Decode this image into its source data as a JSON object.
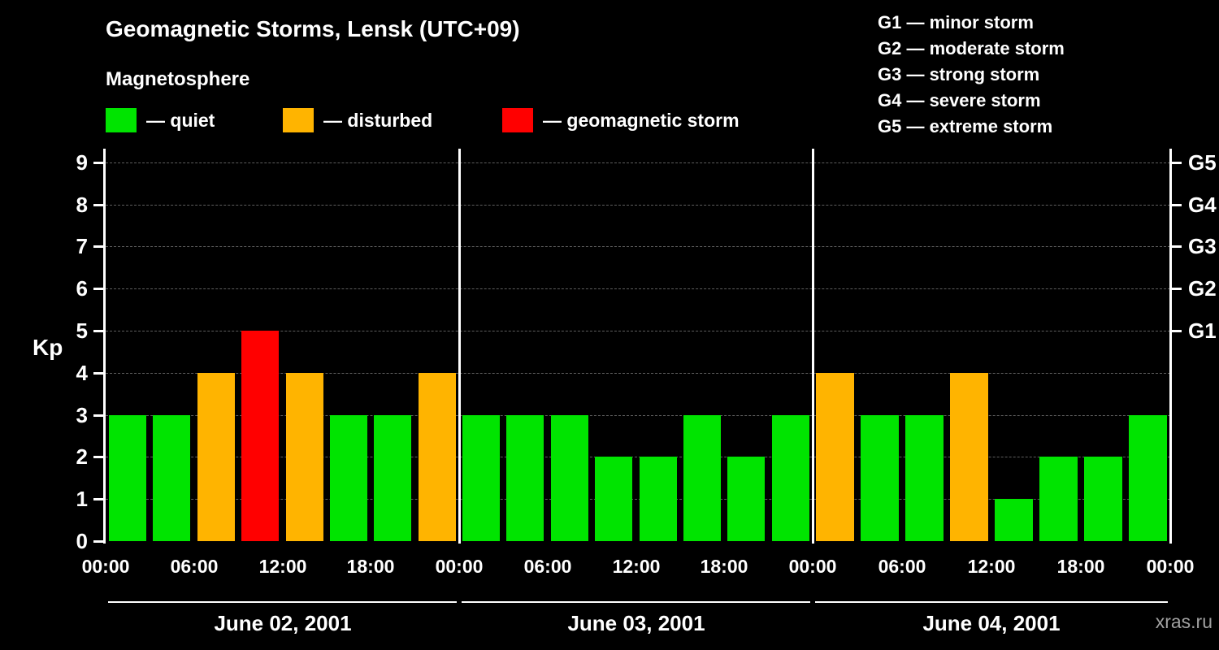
{
  "title": "Geomagnetic Storms, Lensk (UTC+09)",
  "subtitle": "Magnetosphere",
  "legend": [
    {
      "name": "quiet",
      "label": "— quiet",
      "color": "#00e400"
    },
    {
      "name": "disturbed",
      "label": "— disturbed",
      "color": "#ffb400"
    },
    {
      "name": "storm",
      "label": "— geomagnetic storm",
      "color": "#ff0000"
    }
  ],
  "g_legend": [
    "G1 — minor storm",
    "G2 — moderate storm",
    "G3 — strong storm",
    "G4 — severe storm",
    "G5 — extreme storm"
  ],
  "watermark": "xras.ru",
  "chart_data": {
    "type": "bar",
    "title": "Geomagnetic Storms, Lensk (UTC+09)",
    "ylabel": "Kp",
    "ylim": [
      0,
      9.3
    ],
    "yticks": [
      0,
      1,
      2,
      3,
      4,
      5,
      6,
      7,
      8,
      9
    ],
    "grid": true,
    "legend_position": "top",
    "interval_hours": 3,
    "right_axis": [
      {
        "label": "G1",
        "value": 5
      },
      {
        "label": "G2",
        "value": 6
      },
      {
        "label": "G3",
        "value": 7
      },
      {
        "label": "G4",
        "value": 8
      },
      {
        "label": "G5",
        "value": 9
      }
    ],
    "x_tick_labels_per_day": [
      "00:00",
      "06:00",
      "12:00",
      "18:00"
    ],
    "x_final_label": "00:00",
    "colors": {
      "quiet": "#00e400",
      "disturbed": "#ffb400",
      "storm": "#ff0000"
    },
    "color_thresholds": {
      "quiet_max": 3,
      "disturbed_max": 4
    },
    "days": [
      {
        "date": "June 02, 2001",
        "values": [
          3,
          3,
          4,
          5,
          4,
          3,
          3,
          4
        ]
      },
      {
        "date": "June 03, 2001",
        "values": [
          3,
          3,
          3,
          2,
          2,
          3,
          2,
          3
        ]
      },
      {
        "date": "June 04, 2001",
        "values": [
          4,
          3,
          3,
          4,
          1,
          2,
          2,
          3
        ]
      }
    ]
  }
}
